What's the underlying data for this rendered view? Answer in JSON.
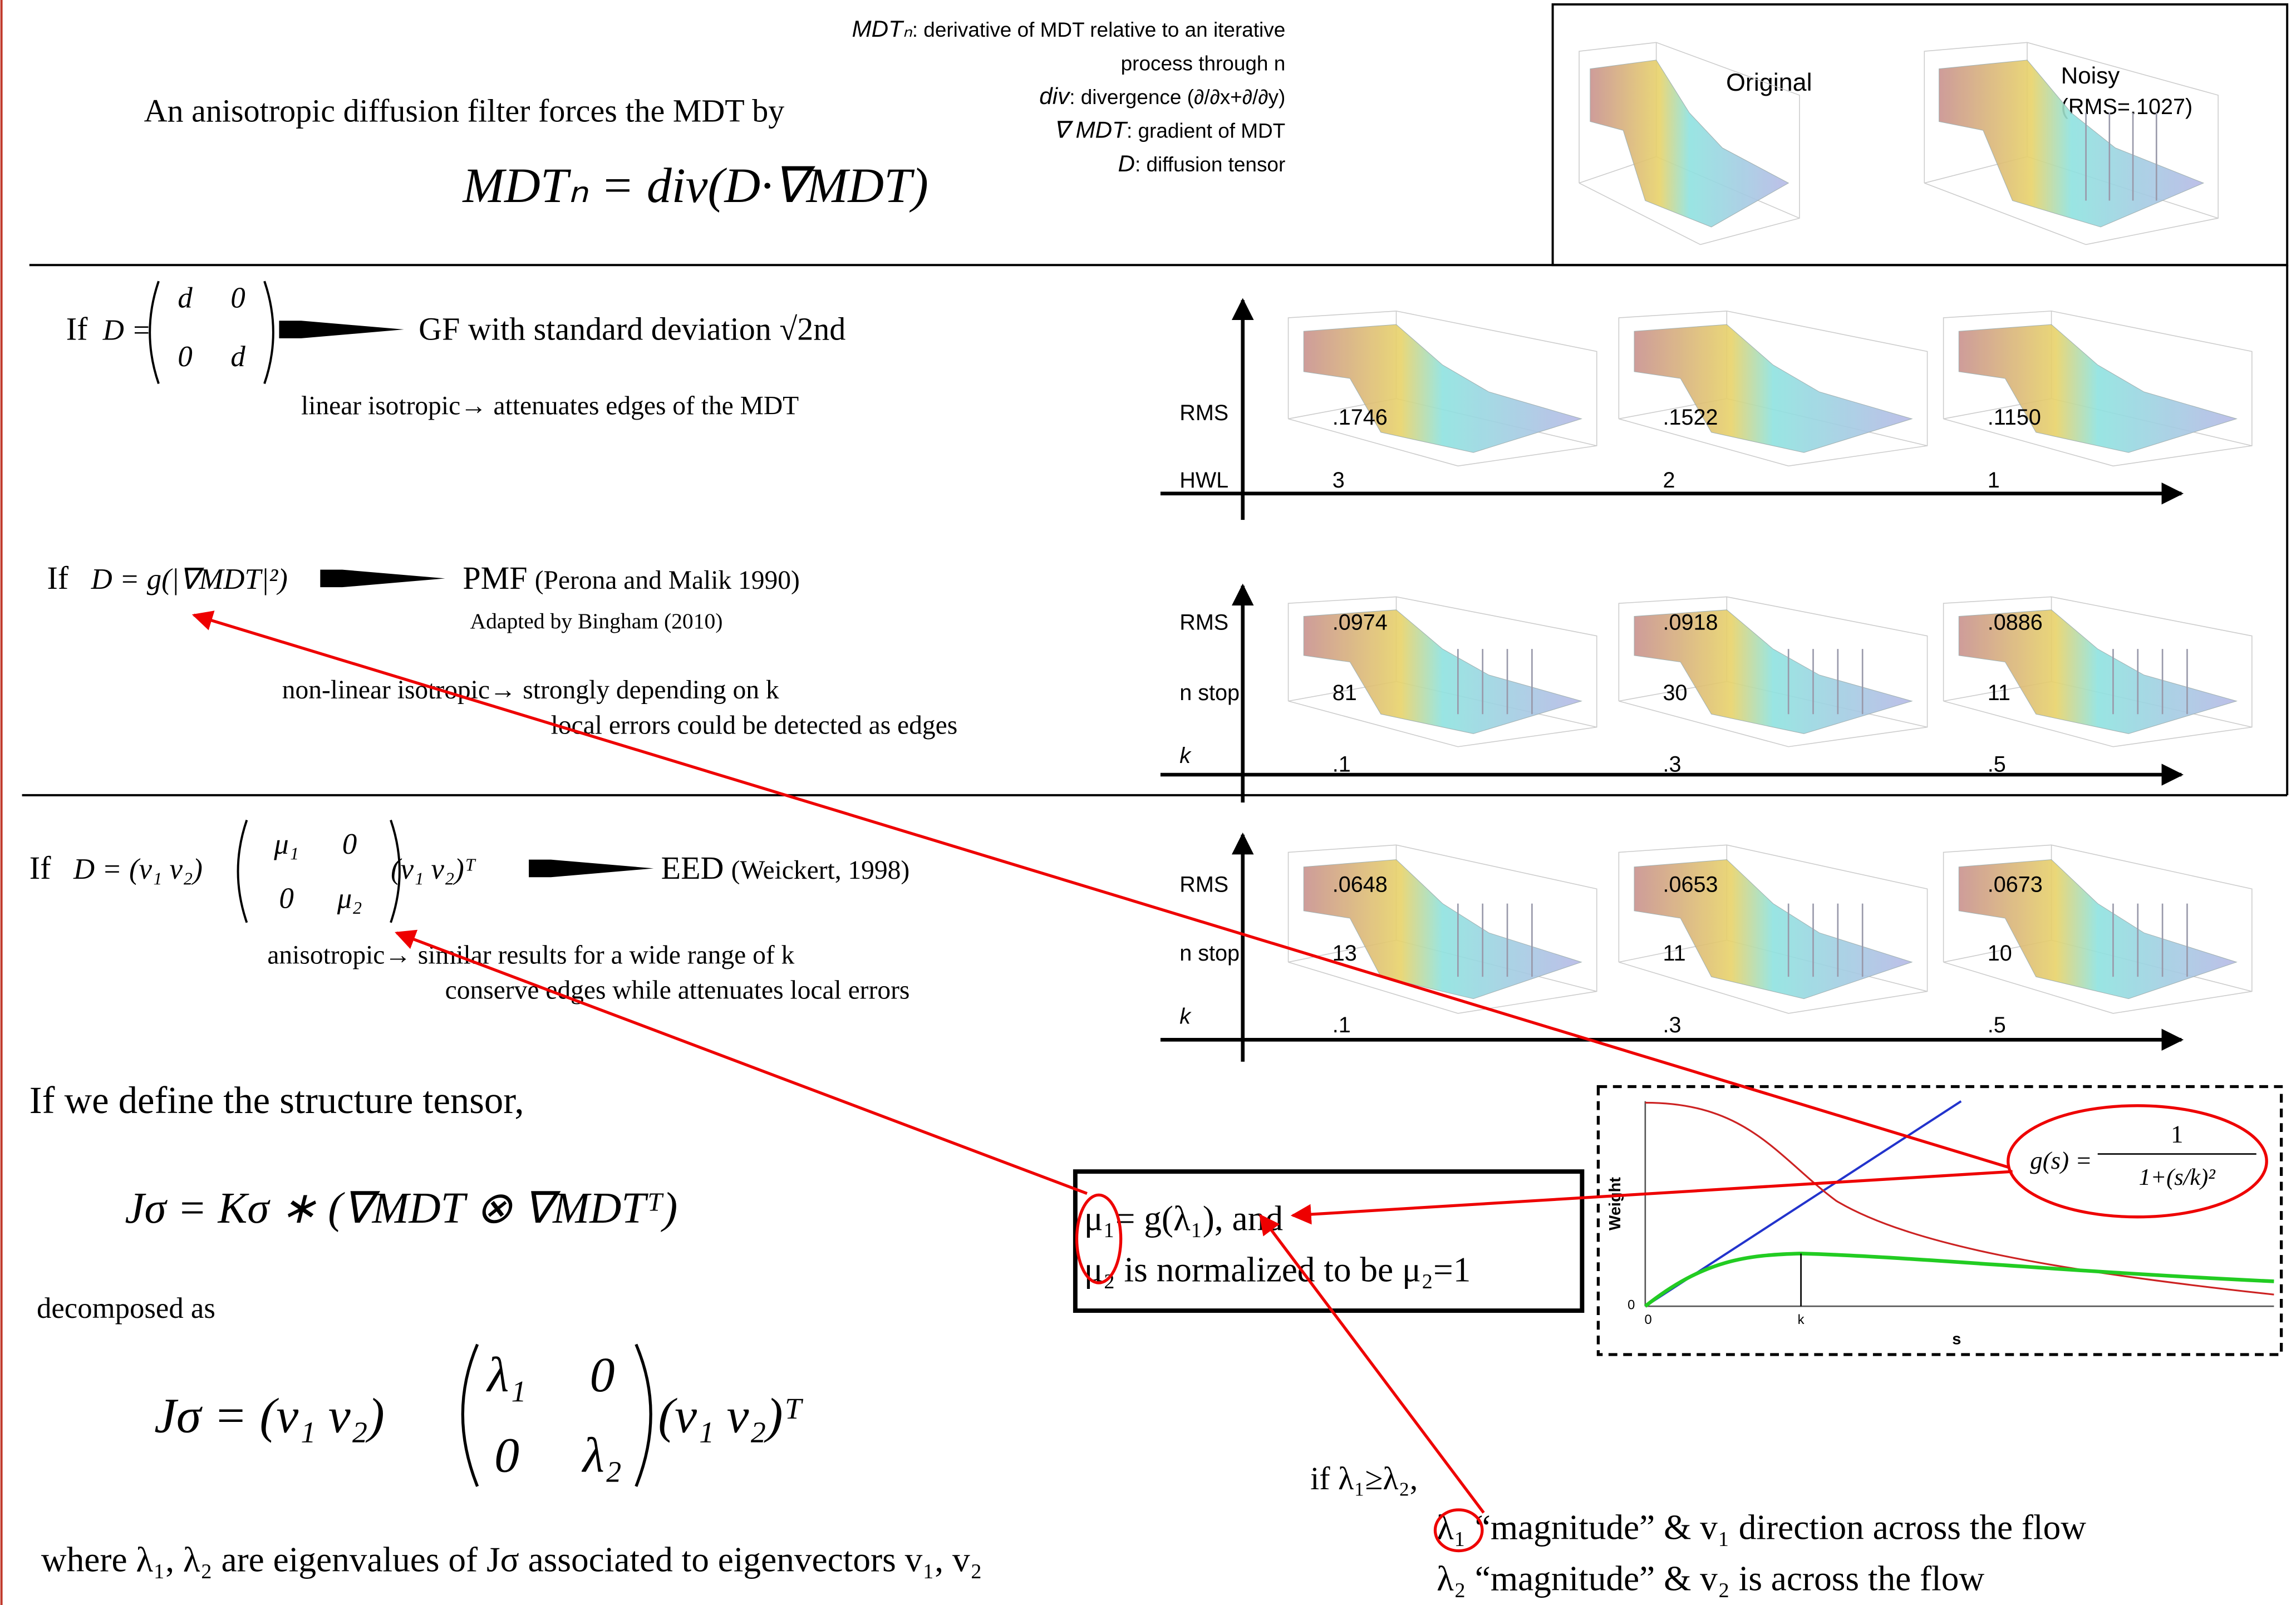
{
  "header": {
    "intro": "An anisotropic diffusion filter forces the MDT by",
    "equation": "MDTₙ = div(D·∇MDT)",
    "legend": [
      {
        "term": "MDTₙ",
        "desc": ": derivative of MDT relative to an iterative"
      },
      {
        "desc": "process through n"
      },
      {
        "term": "div",
        "desc": ": divergence (∂/∂x+∂/∂y)"
      },
      {
        "term": "∇ MDT",
        "desc": ": gradient of MDT"
      },
      {
        "term": "D",
        "desc": ": diffusion tensor"
      }
    ]
  },
  "examples": {
    "original": "Original",
    "noisy": "Noisy",
    "noisy_rms": "(RMS=.1027)"
  },
  "filters": [
    {
      "condition": "If",
      "lhs": "D =",
      "matrix": [
        [
          "d",
          "0"
        ],
        [
          "0",
          "d"
        ]
      ],
      "result": "GF with standard deviation √2nd",
      "notes": [
        "linear isotropic→ attenuates edges of the MDT"
      ]
    },
    {
      "condition": "If",
      "lhs": "D = g(|∇MDT|²)",
      "result": "PMF",
      "result_note": "(Perona and Malik 1990)",
      "sub": "Adapted by Bingham (2010)",
      "notes": [
        "non-linear isotropic→ strongly depending on k",
        "local errors could be detected as edges"
      ]
    },
    {
      "condition": "If",
      "lhs": "D = (v₁   v₂)",
      "matrix": [
        [
          "μ₁",
          "0"
        ],
        [
          "0",
          "μ₂"
        ]
      ],
      "rhs": "(v₁   v₂)ᵀ",
      "result": "EED",
      "result_note": "(Weickert, 1998)",
      "notes": [
        "anisotropic→ similar results for a wide range of k",
        "conserve edges while attenuates local errors"
      ]
    }
  ],
  "results": [
    {
      "labels": [
        "RMS",
        "HWL"
      ],
      "columns": [
        [
          ".1746",
          "3"
        ],
        [
          ".1522",
          "2"
        ],
        [
          ".1150",
          "1"
        ]
      ]
    },
    {
      "labels": [
        "RMS",
        "n stop",
        "k"
      ],
      "columns": [
        [
          ".0974",
          "81",
          ".1"
        ],
        [
          ".0918",
          "30",
          ".3"
        ],
        [
          ".0886",
          "11",
          ".5"
        ]
      ]
    },
    {
      "labels": [
        "RMS",
        "n stop",
        "k"
      ],
      "columns": [
        [
          ".0648",
          "13",
          ".1"
        ],
        [
          ".0653",
          "11",
          ".3"
        ],
        [
          ".0673",
          "10",
          ".5"
        ]
      ]
    }
  ],
  "structure": {
    "intro": "If we define the structure tensor,",
    "formula": "Jσ = Kσ ∗ (∇MDT ⊗ ∇MDTᵀ)",
    "decomposed": "decomposed as",
    "lhs": "Jσ = (v₁   v₂)",
    "matrix": [
      [
        "λ₁",
        "0"
      ],
      [
        "0",
        "λ₂"
      ]
    ],
    "rhs": "(v₁   v₂)ᵀ",
    "where": "where λ₁, λ₂ are eigenvalues of Jσ associated to eigenvectors v₁, v₂"
  },
  "box": [
    "μ₁= g(λ₁), and",
    "μ₂ is normalized to be μ₂=1"
  ],
  "weight_plot": {
    "ylabel": "Weight",
    "xlabel": "s",
    "x_origin": "0",
    "x_mark": "k",
    "y_origin": "0",
    "formula_lhs": "g(s) =",
    "numerator": "1",
    "denominator": "1+(s/k)²"
  },
  "condition": {
    "intro": "if λ₁≥λ₂,",
    "lines": [
      "λ₁ “magnitude” & v₁ direction across the flow",
      "λ₂ “magnitude” & v₂ is across the flow"
    ]
  }
}
